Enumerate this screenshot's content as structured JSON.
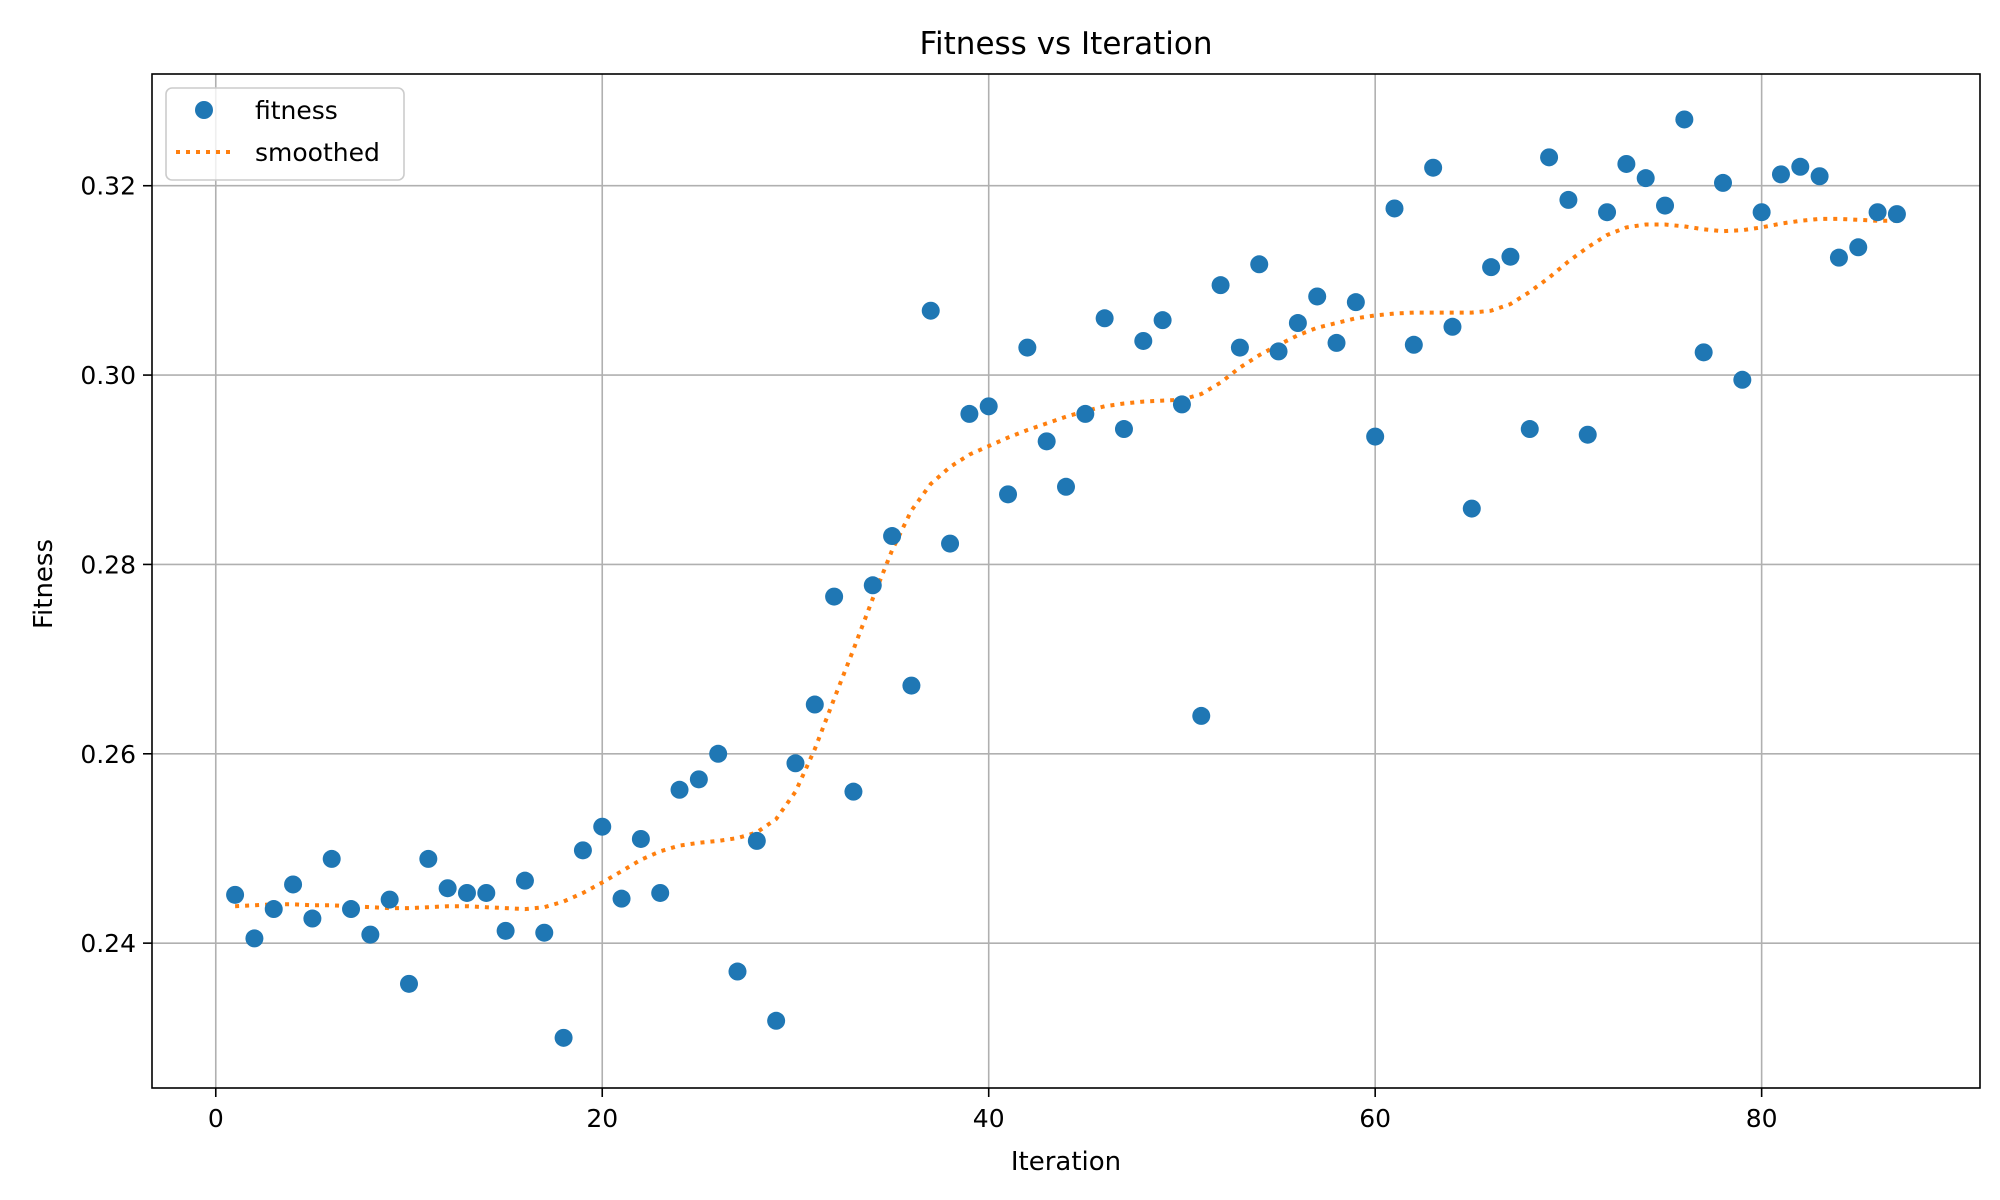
{
  "chart_data": {
    "type": "scatter",
    "title": "Fitness vs Iteration",
    "xlabel": "Iteration",
    "ylabel": "Fitness",
    "xlim": [
      -3.3,
      91.3
    ],
    "ylim": [
      0.2247,
      0.3318
    ],
    "xticks": [
      0,
      20,
      40,
      60,
      80
    ],
    "xtick_labels": [
      "0",
      "20",
      "40",
      "60",
      "80"
    ],
    "yticks": [
      0.24,
      0.26,
      0.28,
      0.3,
      0.32
    ],
    "ytick_labels": [
      "0.24",
      "0.26",
      "0.28",
      "0.30",
      "0.32"
    ],
    "grid": true,
    "legend_position": "top-left",
    "series": [
      {
        "name": "fitness",
        "kind": "scatter",
        "color": "#1f77b4",
        "x": [
          1,
          2,
          3,
          4,
          5,
          6,
          7,
          8,
          9,
          10,
          11,
          12,
          13,
          14,
          15,
          16,
          17,
          18,
          19,
          20,
          21,
          22,
          23,
          24,
          25,
          26,
          27,
          28,
          29,
          30,
          31,
          32,
          33,
          34,
          35,
          36,
          37,
          38,
          39,
          40,
          41,
          42,
          43,
          44,
          45,
          46,
          47,
          48,
          49,
          50,
          51,
          52,
          53,
          54,
          55,
          56,
          57,
          58,
          59,
          60,
          61,
          62,
          63,
          64,
          65,
          66,
          67,
          68,
          69,
          70,
          71,
          72,
          73,
          74,
          75,
          76,
          77,
          78,
          79,
          80,
          81,
          82,
          83,
          84,
          85,
          86,
          87
        ],
        "y": [
          0.2451,
          0.2405,
          0.2436,
          0.2462,
          0.2426,
          0.2489,
          0.2436,
          0.2409,
          0.2446,
          0.2357,
          0.2489,
          0.2458,
          0.2453,
          0.2453,
          0.2413,
          0.2466,
          0.2411,
          0.23,
          0.2498,
          0.2523,
          0.2447,
          0.251,
          0.2453,
          0.2562,
          0.2573,
          0.26,
          0.237,
          0.2508,
          0.2318,
          0.259,
          0.2652,
          0.2766,
          0.256,
          0.2778,
          0.283,
          0.2672,
          0.3068,
          0.2822,
          0.2959,
          0.2967,
          0.2874,
          0.3029,
          0.293,
          0.2882,
          0.2959,
          0.306,
          0.2943,
          0.3036,
          0.3058,
          0.2969,
          0.264,
          0.3095,
          0.3029,
          0.3117,
          0.3025,
          0.3055,
          0.3083,
          0.3034,
          0.3077,
          0.2935,
          0.3176,
          0.3032,
          0.3219,
          0.3051,
          0.2859,
          0.3114,
          0.3125,
          0.2943,
          0.323,
          0.3185,
          0.2937,
          0.3172,
          0.3223,
          0.3208,
          0.3179,
          0.327,
          0.3024,
          0.3203,
          0.2995,
          0.3172,
          0.3212,
          0.322,
          0.321,
          0.3124,
          0.3135,
          0.3172,
          0.317
        ]
      },
      {
        "name": "smoothed",
        "kind": "line",
        "style": "dotted",
        "color": "#ff7f0e",
        "x": [
          1,
          2,
          3,
          4,
          5,
          6,
          7,
          8,
          9,
          10,
          11,
          12,
          13,
          14,
          15,
          16,
          17,
          18,
          19,
          20,
          21,
          22,
          23,
          24,
          25,
          26,
          27,
          28,
          29,
          30,
          31,
          32,
          33,
          34,
          35,
          36,
          37,
          38,
          39,
          40,
          41,
          42,
          43,
          44,
          45,
          46,
          47,
          48,
          49,
          50,
          51,
          52,
          53,
          54,
          55,
          56,
          57,
          58,
          59,
          60,
          61,
          62,
          63,
          64,
          65,
          66,
          67,
          68,
          69,
          70,
          71,
          72,
          73,
          74,
          75,
          76,
          77,
          78,
          79,
          80,
          81,
          82,
          83,
          84,
          85,
          86,
          87
        ],
        "y": [
          0.2439,
          0.244,
          0.2441,
          0.2441,
          0.244,
          0.244,
          0.2439,
          0.2438,
          0.2437,
          0.2437,
          0.2438,
          0.2439,
          0.2439,
          0.2438,
          0.2437,
          0.2436,
          0.2438,
          0.2444,
          0.2453,
          0.2464,
          0.2476,
          0.2488,
          0.2497,
          0.2503,
          0.2506,
          0.2508,
          0.2511,
          0.2517,
          0.2531,
          0.256,
          0.2605,
          0.2658,
          0.271,
          0.2764,
          0.2815,
          0.2857,
          0.2885,
          0.2903,
          0.2916,
          0.2925,
          0.2934,
          0.2942,
          0.2949,
          0.2956,
          0.2962,
          0.2967,
          0.297,
          0.2972,
          0.2973,
          0.2974,
          0.298,
          0.2992,
          0.3008,
          0.3021,
          0.3032,
          0.3042,
          0.305,
          0.3055,
          0.306,
          0.3063,
          0.3065,
          0.3066,
          0.3066,
          0.3066,
          0.3066,
          0.3068,
          0.3075,
          0.3088,
          0.3103,
          0.312,
          0.3135,
          0.3148,
          0.3156,
          0.3159,
          0.3159,
          0.3157,
          0.3154,
          0.3152,
          0.3153,
          0.3156,
          0.316,
          0.3163,
          0.3165,
          0.3165,
          0.3164,
          0.3163,
          0.3163
        ]
      }
    ]
  }
}
